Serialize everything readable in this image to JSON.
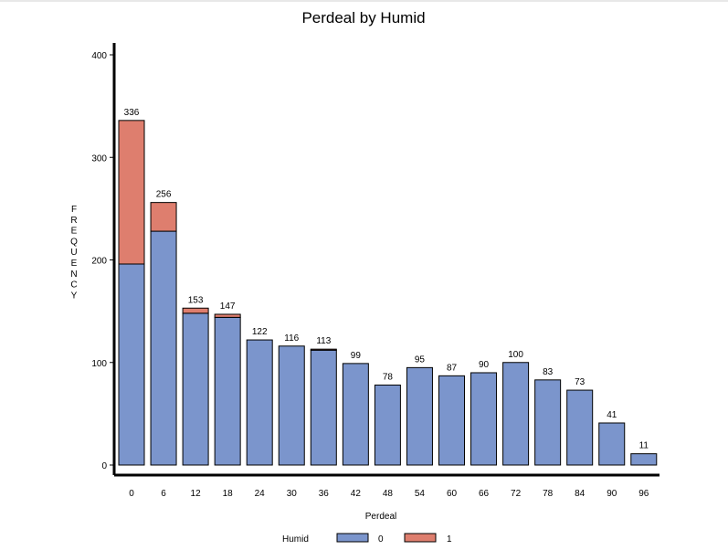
{
  "chart_data": {
    "type": "bar",
    "stacked": true,
    "title": "Perdeal by Humid",
    "xlabel": "Perdeal",
    "ylabel": "FREQUENCY",
    "ylim": [
      0,
      400
    ],
    "yticks": [
      0,
      100,
      200,
      300,
      400
    ],
    "categories": [
      "0",
      "6",
      "12",
      "18",
      "24",
      "30",
      "36",
      "42",
      "48",
      "54",
      "60",
      "66",
      "72",
      "78",
      "84",
      "90",
      "96"
    ],
    "totals": [
      336,
      256,
      153,
      147,
      122,
      116,
      113,
      99,
      78,
      95,
      87,
      90,
      100,
      83,
      73,
      41,
      11
    ],
    "legend_title": "Humid",
    "legend_position": "bottom",
    "series": [
      {
        "name": "0",
        "color": "#7b95cc",
        "values": [
          196,
          228,
          148,
          144,
          122,
          116,
          112,
          99,
          78,
          95,
          87,
          90,
          100,
          83,
          73,
          41,
          11
        ]
      },
      {
        "name": "1",
        "color": "#de7e6e",
        "values": [
          140,
          28,
          5,
          3,
          0,
          0,
          1,
          0,
          0,
          0,
          0,
          0,
          0,
          0,
          0,
          0,
          0
        ]
      }
    ],
    "grid": false
  }
}
